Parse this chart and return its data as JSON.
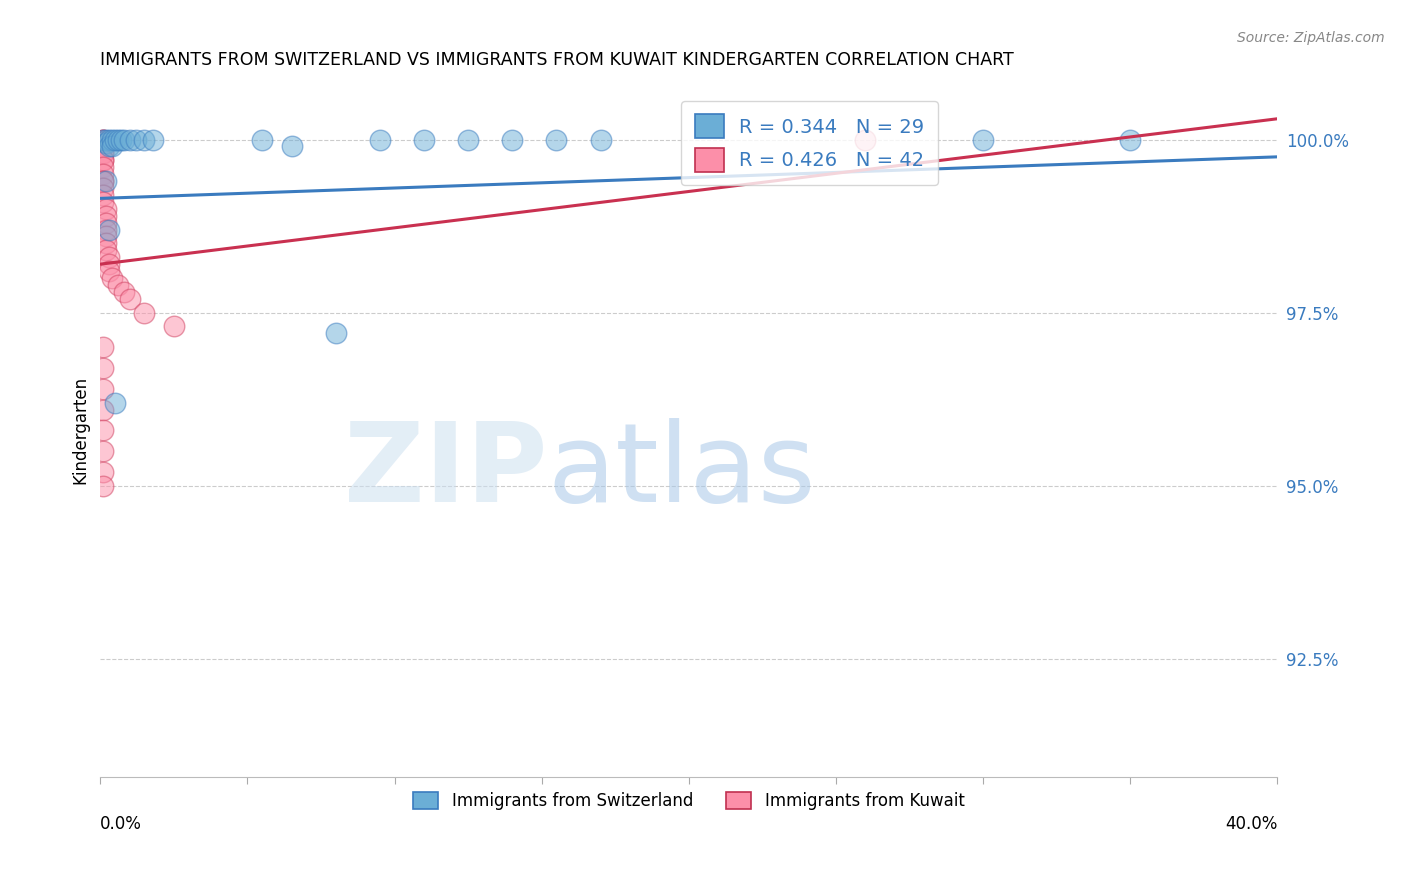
{
  "title": "IMMIGRANTS FROM SWITZERLAND VS IMMIGRANTS FROM KUWAIT KINDERGARTEN CORRELATION CHART",
  "source": "Source: ZipAtlas.com",
  "ylabel": "Kindergarten",
  "ytick_labels": [
    "100.0%",
    "97.5%",
    "95.0%",
    "92.5%"
  ],
  "ytick_values": [
    1.0,
    0.975,
    0.95,
    0.925
  ],
  "xlim": [
    0.0,
    0.4
  ],
  "ylim": [
    0.908,
    1.008
  ],
  "legend_blue_text": "R = 0.344   N = 29",
  "legend_pink_text": "R = 0.426   N = 42",
  "blue_color": "#6baed6",
  "pink_color": "#fc8fa9",
  "trendline_blue": "#3a7bbf",
  "trendline_pink": "#c93050",
  "blue_trend_x0": 0.0,
  "blue_trend_y0": 0.9915,
  "blue_trend_x1": 0.4,
  "blue_trend_y1": 0.9975,
  "pink_trend_x0": 0.0,
  "pink_trend_y0": 0.982,
  "pink_trend_x1": 0.4,
  "pink_trend_y1": 1.003,
  "blue_scatter_x": [
    0.001,
    0.002,
    0.002,
    0.003,
    0.003,
    0.004,
    0.004,
    0.005,
    0.006,
    0.007,
    0.008,
    0.01,
    0.012,
    0.015,
    0.018,
    0.055,
    0.065,
    0.08,
    0.095,
    0.11,
    0.125,
    0.14,
    0.155,
    0.17,
    0.3,
    0.35,
    0.002,
    0.003,
    0.005
  ],
  "blue_scatter_y": [
    1.0,
    1.0,
    0.9995,
    1.0,
    0.999,
    1.0,
    0.999,
    1.0,
    1.0,
    1.0,
    1.0,
    1.0,
    1.0,
    1.0,
    1.0,
    1.0,
    0.999,
    0.972,
    1.0,
    1.0,
    1.0,
    1.0,
    1.0,
    1.0,
    1.0,
    1.0,
    0.994,
    0.987,
    0.962
  ],
  "pink_scatter_x": [
    0.001,
    0.001,
    0.001,
    0.001,
    0.001,
    0.001,
    0.001,
    0.001,
    0.001,
    0.001,
    0.001,
    0.001,
    0.001,
    0.001,
    0.001,
    0.001,
    0.001,
    0.002,
    0.002,
    0.002,
    0.002,
    0.002,
    0.002,
    0.002,
    0.003,
    0.003,
    0.003,
    0.004,
    0.006,
    0.008,
    0.01,
    0.015,
    0.025,
    0.001,
    0.001,
    0.001,
    0.001,
    0.001,
    0.001,
    0.001,
    0.001,
    0.26
  ],
  "pink_scatter_y": [
    1.0,
    1.0,
    1.0,
    0.9997,
    0.999,
    0.999,
    0.998,
    0.998,
    0.997,
    0.997,
    0.996,
    0.995,
    0.994,
    0.994,
    0.993,
    0.992,
    0.991,
    0.99,
    0.989,
    0.988,
    0.987,
    0.986,
    0.985,
    0.984,
    0.983,
    0.982,
    0.981,
    0.98,
    0.979,
    0.978,
    0.977,
    0.975,
    0.973,
    0.97,
    0.967,
    0.964,
    0.961,
    0.958,
    0.955,
    0.952,
    0.95,
    1.0
  ]
}
